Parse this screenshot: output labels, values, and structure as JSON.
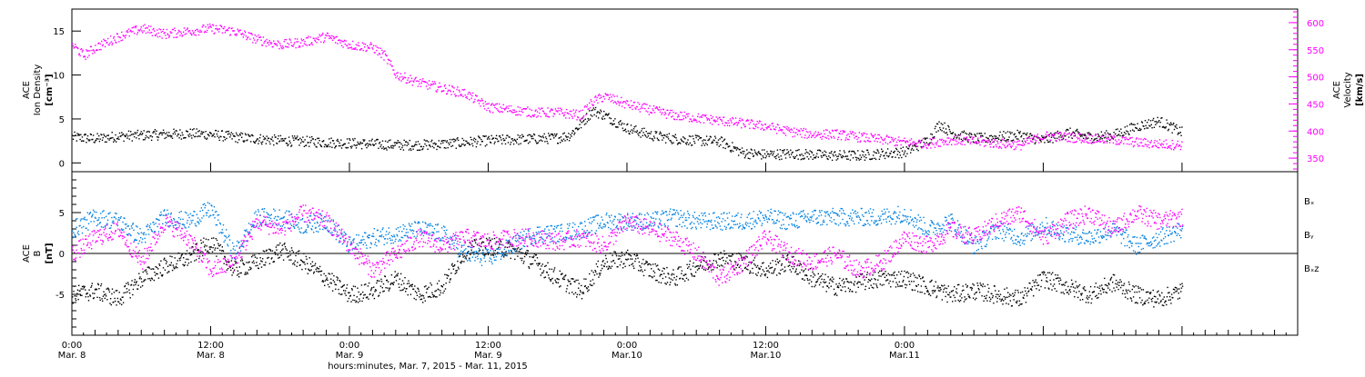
{
  "chart_data": [
    {
      "type": "scatter",
      "panel": "top",
      "ylabel_left": [
        "ACE",
        "Ion Density",
        "[cm⁻³]"
      ],
      "ylabel_right": [
        "ACE",
        "Velocity",
        "[km/s]"
      ],
      "ylim_left": [
        -1,
        17.5
      ],
      "ylim_right": [
        325,
        625
      ],
      "yticks_left": [
        "0",
        "5",
        "10",
        "15"
      ],
      "yticks_left_values": [
        0,
        5,
        10,
        15
      ],
      "yticks_right": [
        "350",
        "400",
        "450",
        "500",
        "550",
        "600"
      ],
      "yticks_right_values": [
        350,
        400,
        450,
        500,
        550,
        600
      ],
      "series": [
        {
          "color": "#000000",
          "axis": "left",
          "x_hours": [
            0,
            2,
            4,
            6,
            8,
            10,
            12,
            14,
            16,
            18,
            20,
            22,
            24,
            26,
            28,
            30,
            32,
            34,
            36,
            38,
            40,
            42,
            43,
            44,
            45,
            46,
            48,
            50,
            52,
            54,
            56,
            58,
            60,
            62,
            64,
            66,
            68,
            70,
            72,
            74,
            75,
            76,
            78,
            80,
            82,
            84,
            86,
            88,
            90,
            92,
            94,
            96
          ],
          "values": [
            3.0,
            2.8,
            3.1,
            3.2,
            3.3,
            3.4,
            3.3,
            3.0,
            2.8,
            2.6,
            2.5,
            2.4,
            2.3,
            2.2,
            2.1,
            2.1,
            2.2,
            2.4,
            2.6,
            2.7,
            2.8,
            2.9,
            3.2,
            4.5,
            6.0,
            5.5,
            4.0,
            3.2,
            2.8,
            2.6,
            2.5,
            1.2,
            1.0,
            1.1,
            1.0,
            0.9,
            0.9,
            1.1,
            1.3,
            2.6,
            4.5,
            3.5,
            2.8,
            3.0,
            3.2,
            2.6,
            3.5,
            3.0,
            3.2,
            4.2,
            4.8,
            3.5
          ]
        },
        {
          "color": "#ff00ff",
          "axis": "right",
          "x_hours": [
            0,
            1,
            2,
            4,
            6,
            8,
            10,
            12,
            14,
            16,
            18,
            20,
            22,
            24,
            26,
            27,
            28,
            30,
            32,
            34,
            36,
            38,
            40,
            42,
            44,
            45,
            46,
            48,
            50,
            52,
            54,
            56,
            58,
            60,
            62,
            64,
            66,
            68,
            70,
            72,
            74,
            76,
            78,
            80,
            82,
            84,
            86,
            88,
            90,
            92,
            94,
            96
          ],
          "values": [
            560,
            540,
            555,
            575,
            590,
            580,
            585,
            590,
            585,
            570,
            560,
            565,
            575,
            560,
            555,
            540,
            505,
            490,
            480,
            470,
            445,
            440,
            435,
            435,
            430,
            455,
            465,
            450,
            440,
            430,
            425,
            420,
            415,
            410,
            400,
            395,
            395,
            390,
            385,
            380,
            378,
            385,
            382,
            378,
            375,
            392,
            390,
            387,
            385,
            380,
            377,
            375
          ]
        }
      ]
    },
    {
      "type": "scatter",
      "panel": "bottom",
      "ylabel_left": [
        "ACE",
        "B",
        "[nT]"
      ],
      "ylim": [
        -10,
        10
      ],
      "yticks": [
        "-5",
        "0",
        "5"
      ],
      "yticks_values": [
        -5,
        0,
        5
      ],
      "zero_line": true,
      "legend_placement": "right",
      "series": [
        {
          "name": "Bₓ",
          "color": "#000000",
          "x_hours": [
            0,
            2,
            4,
            6,
            8,
            10,
            12,
            14,
            16,
            18,
            20,
            22,
            24,
            26,
            28,
            30,
            32,
            34,
            36,
            38,
            40,
            42,
            44,
            46,
            48,
            50,
            52,
            54,
            56,
            58,
            60,
            62,
            64,
            66,
            68,
            70,
            72,
            74,
            76,
            78,
            80,
            82,
            84,
            86,
            88,
            90,
            92,
            94,
            96
          ],
          "values": [
            -5,
            -4.5,
            -5.5,
            -3,
            -1.5,
            -0.5,
            1.5,
            -2,
            -1,
            0.5,
            -1,
            -3,
            -5,
            -4.5,
            -3,
            -5,
            -4,
            0.5,
            1,
            0.5,
            -1,
            -3,
            -4.5,
            -1,
            -0.5,
            -2,
            -3,
            -1.5,
            -0.5,
            -1,
            -2,
            -1,
            -3,
            -4,
            -3.5,
            -3,
            -3,
            -4,
            -5,
            -4.5,
            -5,
            -5.5,
            -3,
            -4,
            -5,
            -3.5,
            -5,
            -5.5,
            -4.5
          ]
        },
        {
          "name": "Bᵧ",
          "color": "#0080e0",
          "x_hours": [
            0,
            2,
            4,
            6,
            8,
            10,
            12,
            14,
            16,
            18,
            20,
            22,
            24,
            26,
            28,
            30,
            32,
            34,
            36,
            38,
            40,
            42,
            44,
            46,
            48,
            50,
            52,
            54,
            56,
            58,
            60,
            62,
            64,
            66,
            68,
            70,
            72,
            74,
            76,
            78,
            80,
            82,
            84,
            86,
            88,
            90,
            92,
            94,
            96
          ],
          "values": [
            3,
            4.5,
            4,
            2,
            4.5,
            4,
            5.5,
            0,
            4.5,
            4.5,
            3.5,
            4,
            1,
            2,
            2.5,
            3,
            2.5,
            0,
            -0.5,
            1,
            2.5,
            2.5,
            3,
            4,
            4,
            4,
            4.5,
            4,
            4,
            4,
            4.5,
            4,
            4.5,
            4.5,
            4.5,
            4.5,
            5,
            3,
            4,
            1,
            3,
            2,
            3.5,
            2.5,
            2,
            3,
            1,
            2,
            3
          ]
        },
        {
          "name": "Bₓz",
          "color": "#ff00ff",
          "x_hours": [
            0,
            2,
            4,
            6,
            8,
            10,
            12,
            14,
            16,
            18,
            20,
            22,
            24,
            26,
            28,
            30,
            32,
            34,
            36,
            38,
            40,
            42,
            44,
            46,
            48,
            50,
            52,
            54,
            56,
            58,
            60,
            62,
            64,
            66,
            68,
            70,
            72,
            74,
            76,
            78,
            80,
            82,
            84,
            86,
            88,
            90,
            92,
            94,
            96
          ],
          "values": [
            0,
            2,
            3,
            -1,
            4,
            2,
            -2,
            -1,
            4,
            3,
            5,
            4,
            1,
            -2,
            0,
            2,
            1,
            2,
            1.5,
            2,
            2,
            1.5,
            2,
            1,
            4,
            3,
            2,
            0,
            -3,
            -1,
            2,
            0,
            -1,
            0,
            -2,
            -1,
            2,
            1,
            3,
            2,
            4,
            5,
            2,
            4,
            5,
            3,
            5,
            4,
            4.5
          ]
        }
      ],
      "legend": [
        "Bₓ",
        "Bᵧ",
        "Bₓz"
      ]
    }
  ],
  "x_axis": {
    "title": "hours:minutes, Mar.  7, 2015 - Mar. 11, 2015",
    "range_hours": [
      0,
      106
    ],
    "major_ticks": [
      {
        "hours": 0,
        "time": "0:00",
        "date": "Mar. 8"
      },
      {
        "hours": 12,
        "time": "12:00",
        "date": "Mar. 8"
      },
      {
        "hours": 24,
        "time": "0:00",
        "date": "Mar. 9"
      },
      {
        "hours": 36,
        "time": "12:00",
        "date": "Mar. 9"
      },
      {
        "hours": 48,
        "time": "0:00",
        "date": "Mar.10"
      },
      {
        "hours": 60,
        "time": "12:00",
        "date": "Mar.10"
      },
      {
        "hours": 72,
        "time": "0:00",
        "date": "Mar.11"
      }
    ]
  }
}
